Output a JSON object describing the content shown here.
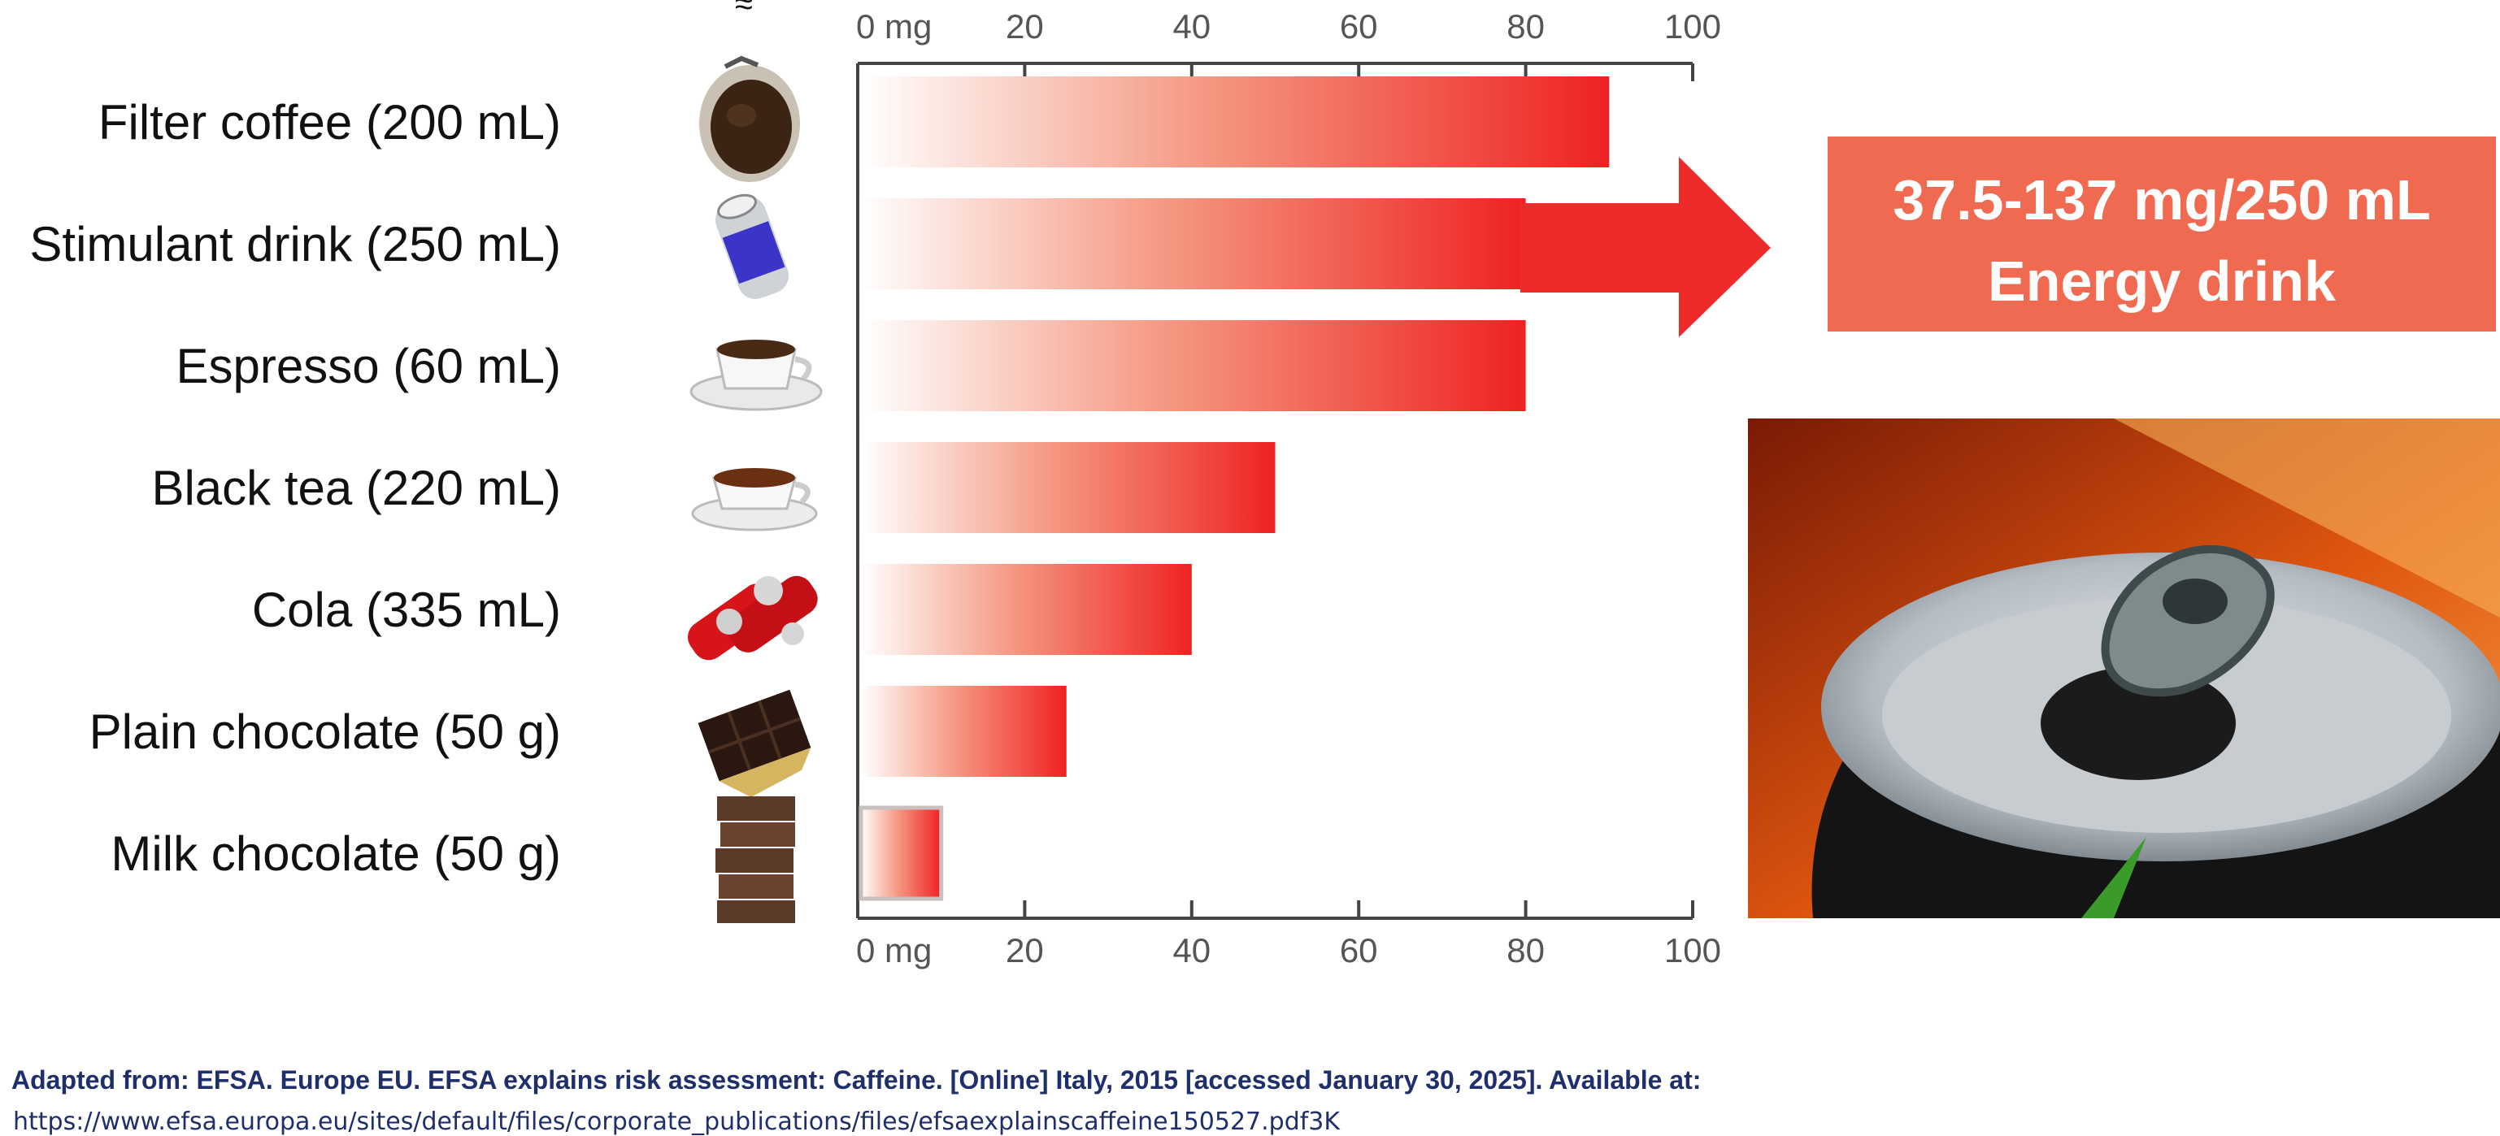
{
  "chart_data": {
    "type": "bar",
    "orientation": "horizontal",
    "approx_symbol": "≈",
    "categories": [
      "Filter coffee (200 mL)",
      "Stimulant drink (250 mL)",
      "Espresso (60 mL)",
      "Black tea (220 mL)",
      "Cola (335 mL)",
      "Plain chocolate (50 g)",
      "Milk chocolate (50 g)"
    ],
    "values": [
      90,
      80,
      80,
      50,
      40,
      25,
      10
    ],
    "xlim": [
      0,
      100
    ],
    "ticks": [
      "0 mg",
      "20",
      "40",
      "60",
      "80",
      "100"
    ],
    "tick_values": [
      0,
      20,
      40,
      60,
      80,
      100
    ],
    "grid": false,
    "icons": [
      "coffee-filter-icon",
      "stimulant-can-icon",
      "espresso-cup-icon",
      "tea-cup-icon",
      "cola-cans-icon",
      "dark-chocolate-icon",
      "milk-chocolate-icon"
    ],
    "bar_color": "#ee2a2a"
  },
  "callout": {
    "line1": "37.5-137 mg/250 mL",
    "line2": "Energy drink",
    "box_color": "#ef6a50",
    "arrow_color": "#ee2a2a"
  },
  "source": {
    "line1": "Adapted from: EFSA. Europe EU. EFSA explains risk assessment: Caffeine. [Online] Italy, 2015 [accessed January 30, 2025]. Available at:",
    "line2": "https://www.efsa.europa.eu/sites/default/files/corporate_publications/files/efsaexplainscaffeine150527.pdf3K"
  }
}
